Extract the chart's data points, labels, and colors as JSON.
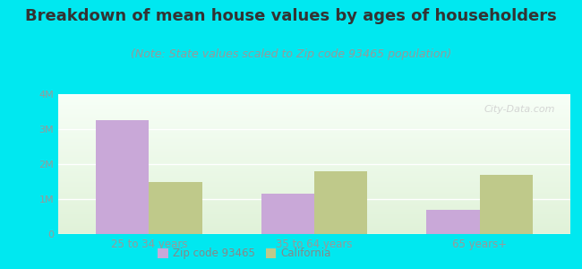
{
  "title": "Breakdown of mean house values by ages of householders",
  "subtitle": "(Note: State values scaled to Zip code 93465 population)",
  "categories": [
    "25 to 34 years",
    "35 to 64 years",
    "65 years+"
  ],
  "zip_values": [
    3250000,
    1150000,
    700000
  ],
  "ca_values": [
    1500000,
    1800000,
    1700000
  ],
  "zip_color": "#c9a8d8",
  "ca_color": "#bfc98a",
  "background_outer": "#00e8f0",
  "ylim": [
    0,
    4000000
  ],
  "yticks": [
    0,
    1000000,
    2000000,
    3000000,
    4000000
  ],
  "ytick_labels": [
    "0",
    "1M",
    "2M",
    "3M",
    "4M"
  ],
  "title_fontsize": 13,
  "subtitle_fontsize": 9,
  "legend_labels": [
    "Zip code 93465",
    "California"
  ],
  "bar_width": 0.32,
  "watermark": "City-Data.com"
}
